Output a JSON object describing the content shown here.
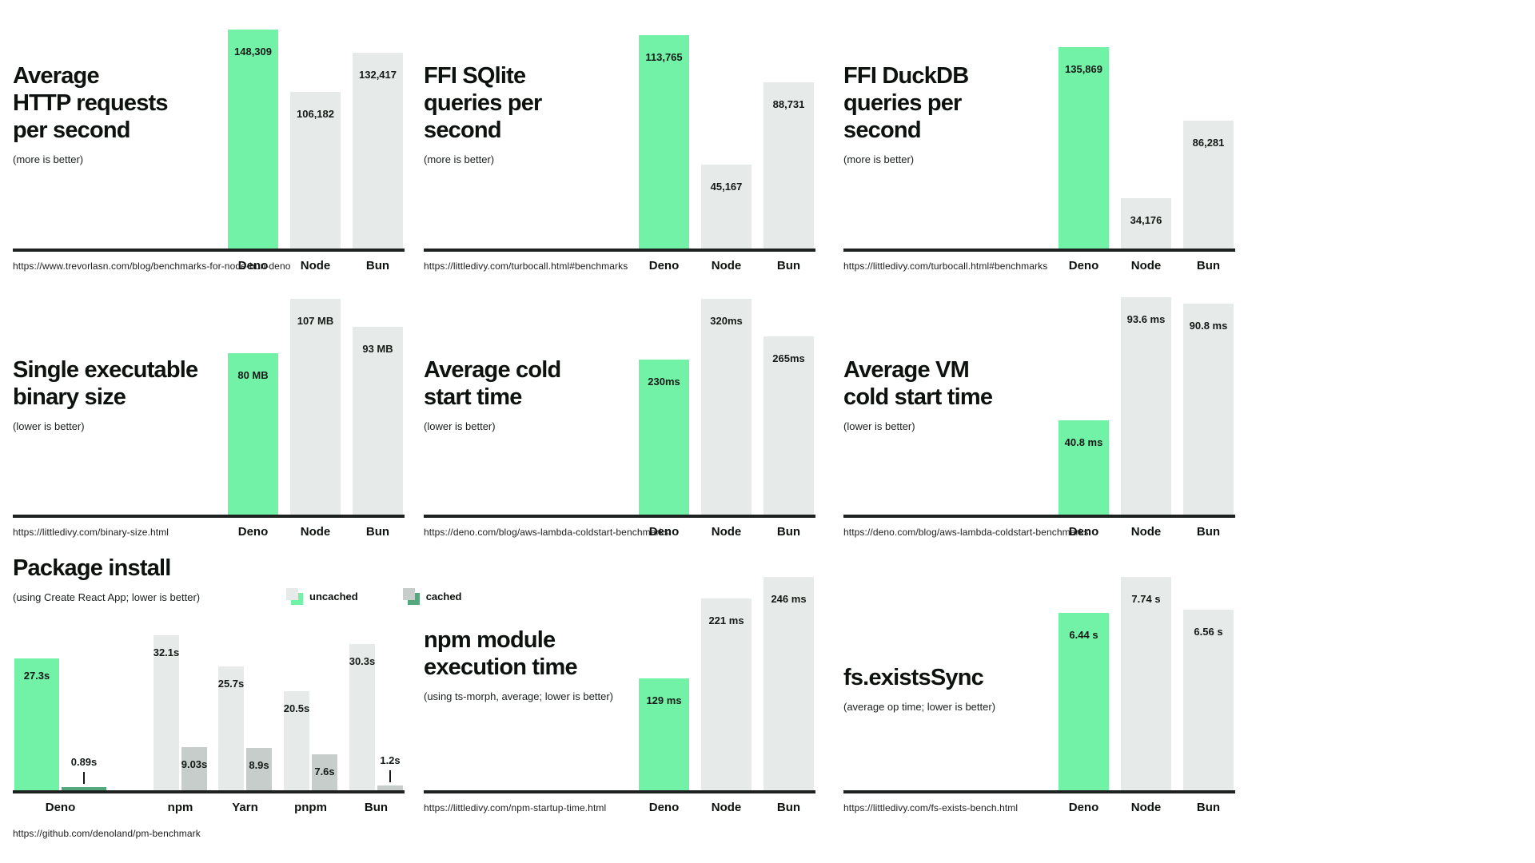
{
  "colors": {
    "deno_green": "#71f2a7",
    "bar_gray": "#e6eae8",
    "cached_gray": "#c7cdca",
    "deno_cached_green": "#55a87d",
    "axis_black": "#1d211f",
    "text_black": "#0d120f"
  },
  "chart_data": [
    {
      "type": "bar",
      "title": [
        "Average",
        "HTTP requests",
        "per second"
      ],
      "subtitle": "(more is better)",
      "source_url": "https://www.trevorlasn.com/blog/benchmarks-for-node-bun-deno",
      "categories": [
        "Deno",
        "Node",
        "Bun"
      ],
      "values": [
        148309,
        106182,
        132417
      ],
      "value_labels": [
        "148,309",
        "106,182",
        "132,417"
      ],
      "highlight": "Deno",
      "ylim": [
        0,
        148309
      ],
      "grid": false
    },
    {
      "type": "bar",
      "title": [
        "FFI SQlite",
        "queries per",
        "second"
      ],
      "subtitle": "(more is better)",
      "source_url": "https://littledivy.com/turbocall.html#benchmarks",
      "categories": [
        "Deno",
        "Node",
        "Bun"
      ],
      "values": [
        113765,
        45167,
        88731
      ],
      "value_labels": [
        "113,765",
        "45,167",
        "88,731"
      ],
      "highlight": "Deno",
      "ylim": [
        0,
        113765
      ],
      "grid": false
    },
    {
      "type": "bar",
      "title": [
        "FFI DuckDB",
        "queries per",
        "second"
      ],
      "subtitle": "(more is better)",
      "source_url": "https://littledivy.com/turbocall.html#benchmarks",
      "categories": [
        "Deno",
        "Node",
        "Bun"
      ],
      "values": [
        135869,
        34176,
        86281
      ],
      "value_labels": [
        "135,869",
        "34,176",
        "86,281"
      ],
      "highlight": "Deno",
      "ylim": [
        0,
        135869
      ],
      "grid": false
    },
    {
      "type": "bar",
      "title": [
        "Single executable",
        "binary size"
      ],
      "subtitle": "(lower is better)",
      "source_url": "https://littledivy.com/binary-size.html",
      "categories": [
        "Deno",
        "Node",
        "Bun"
      ],
      "values": [
        80,
        107,
        93
      ],
      "value_labels": [
        "80 MB",
        "107 MB",
        "93 MB"
      ],
      "highlight": "Deno",
      "ylim": [
        0,
        107
      ],
      "grid": false
    },
    {
      "type": "bar",
      "title": [
        "Average cold",
        "start time"
      ],
      "subtitle": "(lower is better)",
      "source_url": "https://deno.com/blog/aws-lambda-coldstart-benchmarks",
      "categories": [
        "Deno",
        "Node",
        "Bun"
      ],
      "values": [
        230,
        320,
        265
      ],
      "value_labels": [
        "230ms",
        "320ms",
        "265ms"
      ],
      "highlight": "Deno",
      "ylim": [
        0,
        320
      ],
      "grid": false
    },
    {
      "type": "bar",
      "title": [
        "Average VM",
        "cold start time"
      ],
      "subtitle": "(lower is better)",
      "source_url": "https://deno.com/blog/aws-lambda-coldstart-benchmarks",
      "categories": [
        "Deno",
        "Node",
        "Bun"
      ],
      "values": [
        40.8,
        93.6,
        90.8
      ],
      "value_labels": [
        "40.8 ms",
        "93.6 ms",
        "90.8 ms"
      ],
      "highlight": "Deno",
      "ylim": [
        0,
        93.6
      ],
      "grid": false
    },
    {
      "type": "grouped-bar",
      "title": [
        "Package install"
      ],
      "subtitle": "(using Create React App; lower is better)",
      "source_url": "https://github.com/denoland/pm-benchmark",
      "legend": [
        {
          "label": "uncached",
          "front_color": "bar_gray",
          "back_color": "deno_green"
        },
        {
          "label": "cached",
          "front_color": "cached_gray",
          "back_color": "deno_cached_green"
        }
      ],
      "legend_position": "top-right",
      "categories": [
        "Deno",
        "npm",
        "Yarn",
        "pnpm",
        "Bun"
      ],
      "series": [
        {
          "name": "uncached",
          "values": [
            27.3,
            32.1,
            25.7,
            20.5,
            30.3
          ],
          "value_labels": [
            "27.3s",
            "32.1s",
            "25.7s",
            "20.5s",
            "30.3s"
          ]
        },
        {
          "name": "cached",
          "values": [
            0.89,
            9.03,
            8.9,
            7.6,
            1.2
          ],
          "value_labels": [
            "0.89s",
            "9.03s",
            "8.9s",
            "7.6s",
            "1.2s"
          ]
        }
      ],
      "highlight": "Deno",
      "ylim": [
        0,
        32.1
      ],
      "grid": false
    },
    {
      "type": "bar",
      "title": [
        "npm module",
        "execution time"
      ],
      "subtitle": "(using ts-morph, average; lower is better)",
      "source_url": "https://littledivy.com/npm-startup-time.html",
      "categories": [
        "Deno",
        "Node",
        "Bun"
      ],
      "values": [
        129,
        221,
        246
      ],
      "value_labels": [
        "129 ms",
        "221 ms",
        "246 ms"
      ],
      "highlight": "Deno",
      "ylim": [
        0,
        246
      ],
      "grid": false
    },
    {
      "type": "bar",
      "title": [
        "fs.existsSync"
      ],
      "subtitle": "(average op time; lower is better)",
      "source_url": "https://littledivy.com/fs-exists-bench.html",
      "categories": [
        "Deno",
        "Node",
        "Bun"
      ],
      "values": [
        6.44,
        7.74,
        6.56
      ],
      "value_labels": [
        "6.44 s",
        "7.74 s",
        "6.56 s"
      ],
      "highlight": "Deno",
      "ylim": [
        0,
        7.74
      ],
      "grid": false
    }
  ]
}
